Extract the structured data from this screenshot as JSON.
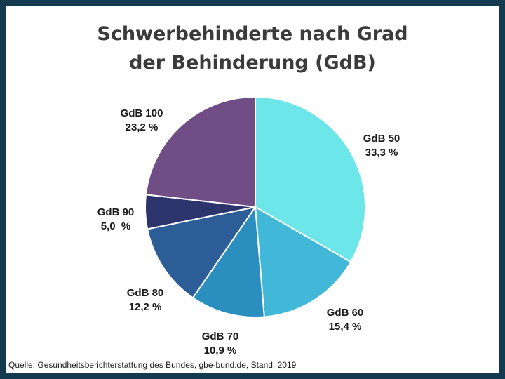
{
  "chart_data": {
    "type": "pie",
    "title": [
      "Schwerbehinderte nach Grad",
      "der Behinderung (GdB)"
    ],
    "slices": [
      {
        "name": "GdB 50",
        "value": 33.3,
        "label": "33,3 %",
        "color": "#6de6ea"
      },
      {
        "name": "GdB 60",
        "value": 15.4,
        "label": "15,4 %",
        "color": "#42b8d8"
      },
      {
        "name": "GdB 70",
        "value": 10.9,
        "label": "10,9 %",
        "color": "#2a8fbf"
      },
      {
        "name": "GdB 80",
        "value": 12.2,
        "label": "12,2 %",
        "color": "#2d5d96"
      },
      {
        "name": "GdB 90",
        "value": 5.0,
        "label": "5,0  %",
        "color": "#2d346b"
      },
      {
        "name": "GdB 100",
        "value": 23.2,
        "label": "23,2 %",
        "color": "#704d85"
      }
    ],
    "start": "12 o'clock",
    "direction": "clockwise",
    "legend": "none"
  },
  "source": "Quelle: Gesundheitsberichterstattung des Bundes, gbe-bund.de, Stand: 2019",
  "colors": {
    "frame": "#143a4f",
    "title": "#3b3b3b"
  }
}
